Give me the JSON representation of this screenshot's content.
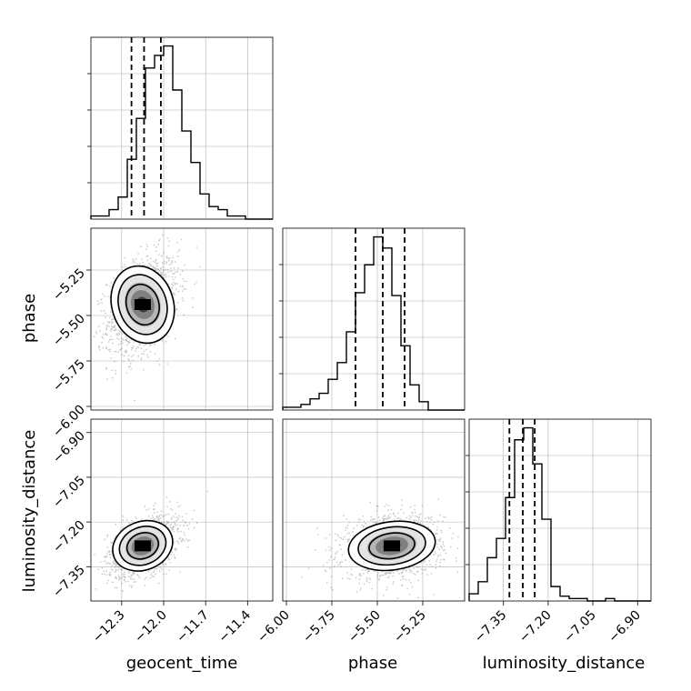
{
  "chart_data": {
    "type": "corner",
    "parameters": [
      "geocent_time",
      "phase",
      "luminosity_distance"
    ],
    "ranges": {
      "geocent_time": [
        -12.52,
        -11.22
      ],
      "phase": [
        -6.02,
        -5.02
      ],
      "luminosity_distance": [
        -7.465,
        -6.855
      ]
    },
    "ticks": {
      "geocent_time": [
        -12.3,
        -12.0,
        -11.7,
        -11.4
      ],
      "phase": [
        -6.0,
        -5.75,
        -5.5,
        -5.25
      ],
      "luminosity_distance": [
        -7.35,
        -7.2,
        -7.05,
        -6.9
      ]
    },
    "tick_labels": {
      "geocent_time": [
        "−12.3",
        "−12.0",
        "−11.7",
        "−11.4"
      ],
      "phase": [
        "−6.00",
        "−5.75",
        "−5.50",
        "−5.25"
      ],
      "luminosity_distance": [
        "−7.35",
        "−7.20",
        "−7.05",
        "−6.90"
      ]
    },
    "quantiles": {
      "geocent_time": [
        -12.23,
        -12.14,
        -12.02
      ],
      "phase": [
        -5.62,
        -5.47,
        -5.35
      ],
      "luminosity_distance": [
        -7.33,
        -7.285,
        -7.245
      ]
    },
    "histograms": {
      "geocent_time": {
        "bins": 20,
        "counts": [
          1,
          1,
          3,
          7,
          19,
          32,
          48,
          52,
          55,
          41,
          28,
          18,
          8,
          4,
          3,
          1,
          1,
          0,
          0,
          0
        ]
      },
      "phase": {
        "bins": 20,
        "counts": [
          1,
          1,
          2,
          4,
          6,
          11,
          17,
          28,
          42,
          52,
          62,
          58,
          41,
          23,
          9,
          3,
          0,
          0,
          0,
          0
        ]
      },
      "luminosity_distance": {
        "bins": 20,
        "counts": [
          3,
          8,
          18,
          26,
          43,
          67,
          72,
          57,
          34,
          6,
          2,
          1,
          1,
          0,
          0,
          1,
          0,
          0,
          0,
          0
        ]
      }
    },
    "peaks_2d": [
      {
        "x": "geocent_time",
        "y": "phase",
        "x_peak": -12.15,
        "y_peak": -5.44
      },
      {
        "x": "geocent_time",
        "y": "luminosity_distance",
        "x_peak": -12.15,
        "y_peak": -7.28
      },
      {
        "x": "phase",
        "y": "luminosity_distance",
        "x_peak": -5.42,
        "y_peak": -7.28
      }
    ],
    "grid": true,
    "colors": {
      "line": "#000000",
      "grid": "#b0b0b0",
      "density": "#000000"
    }
  }
}
